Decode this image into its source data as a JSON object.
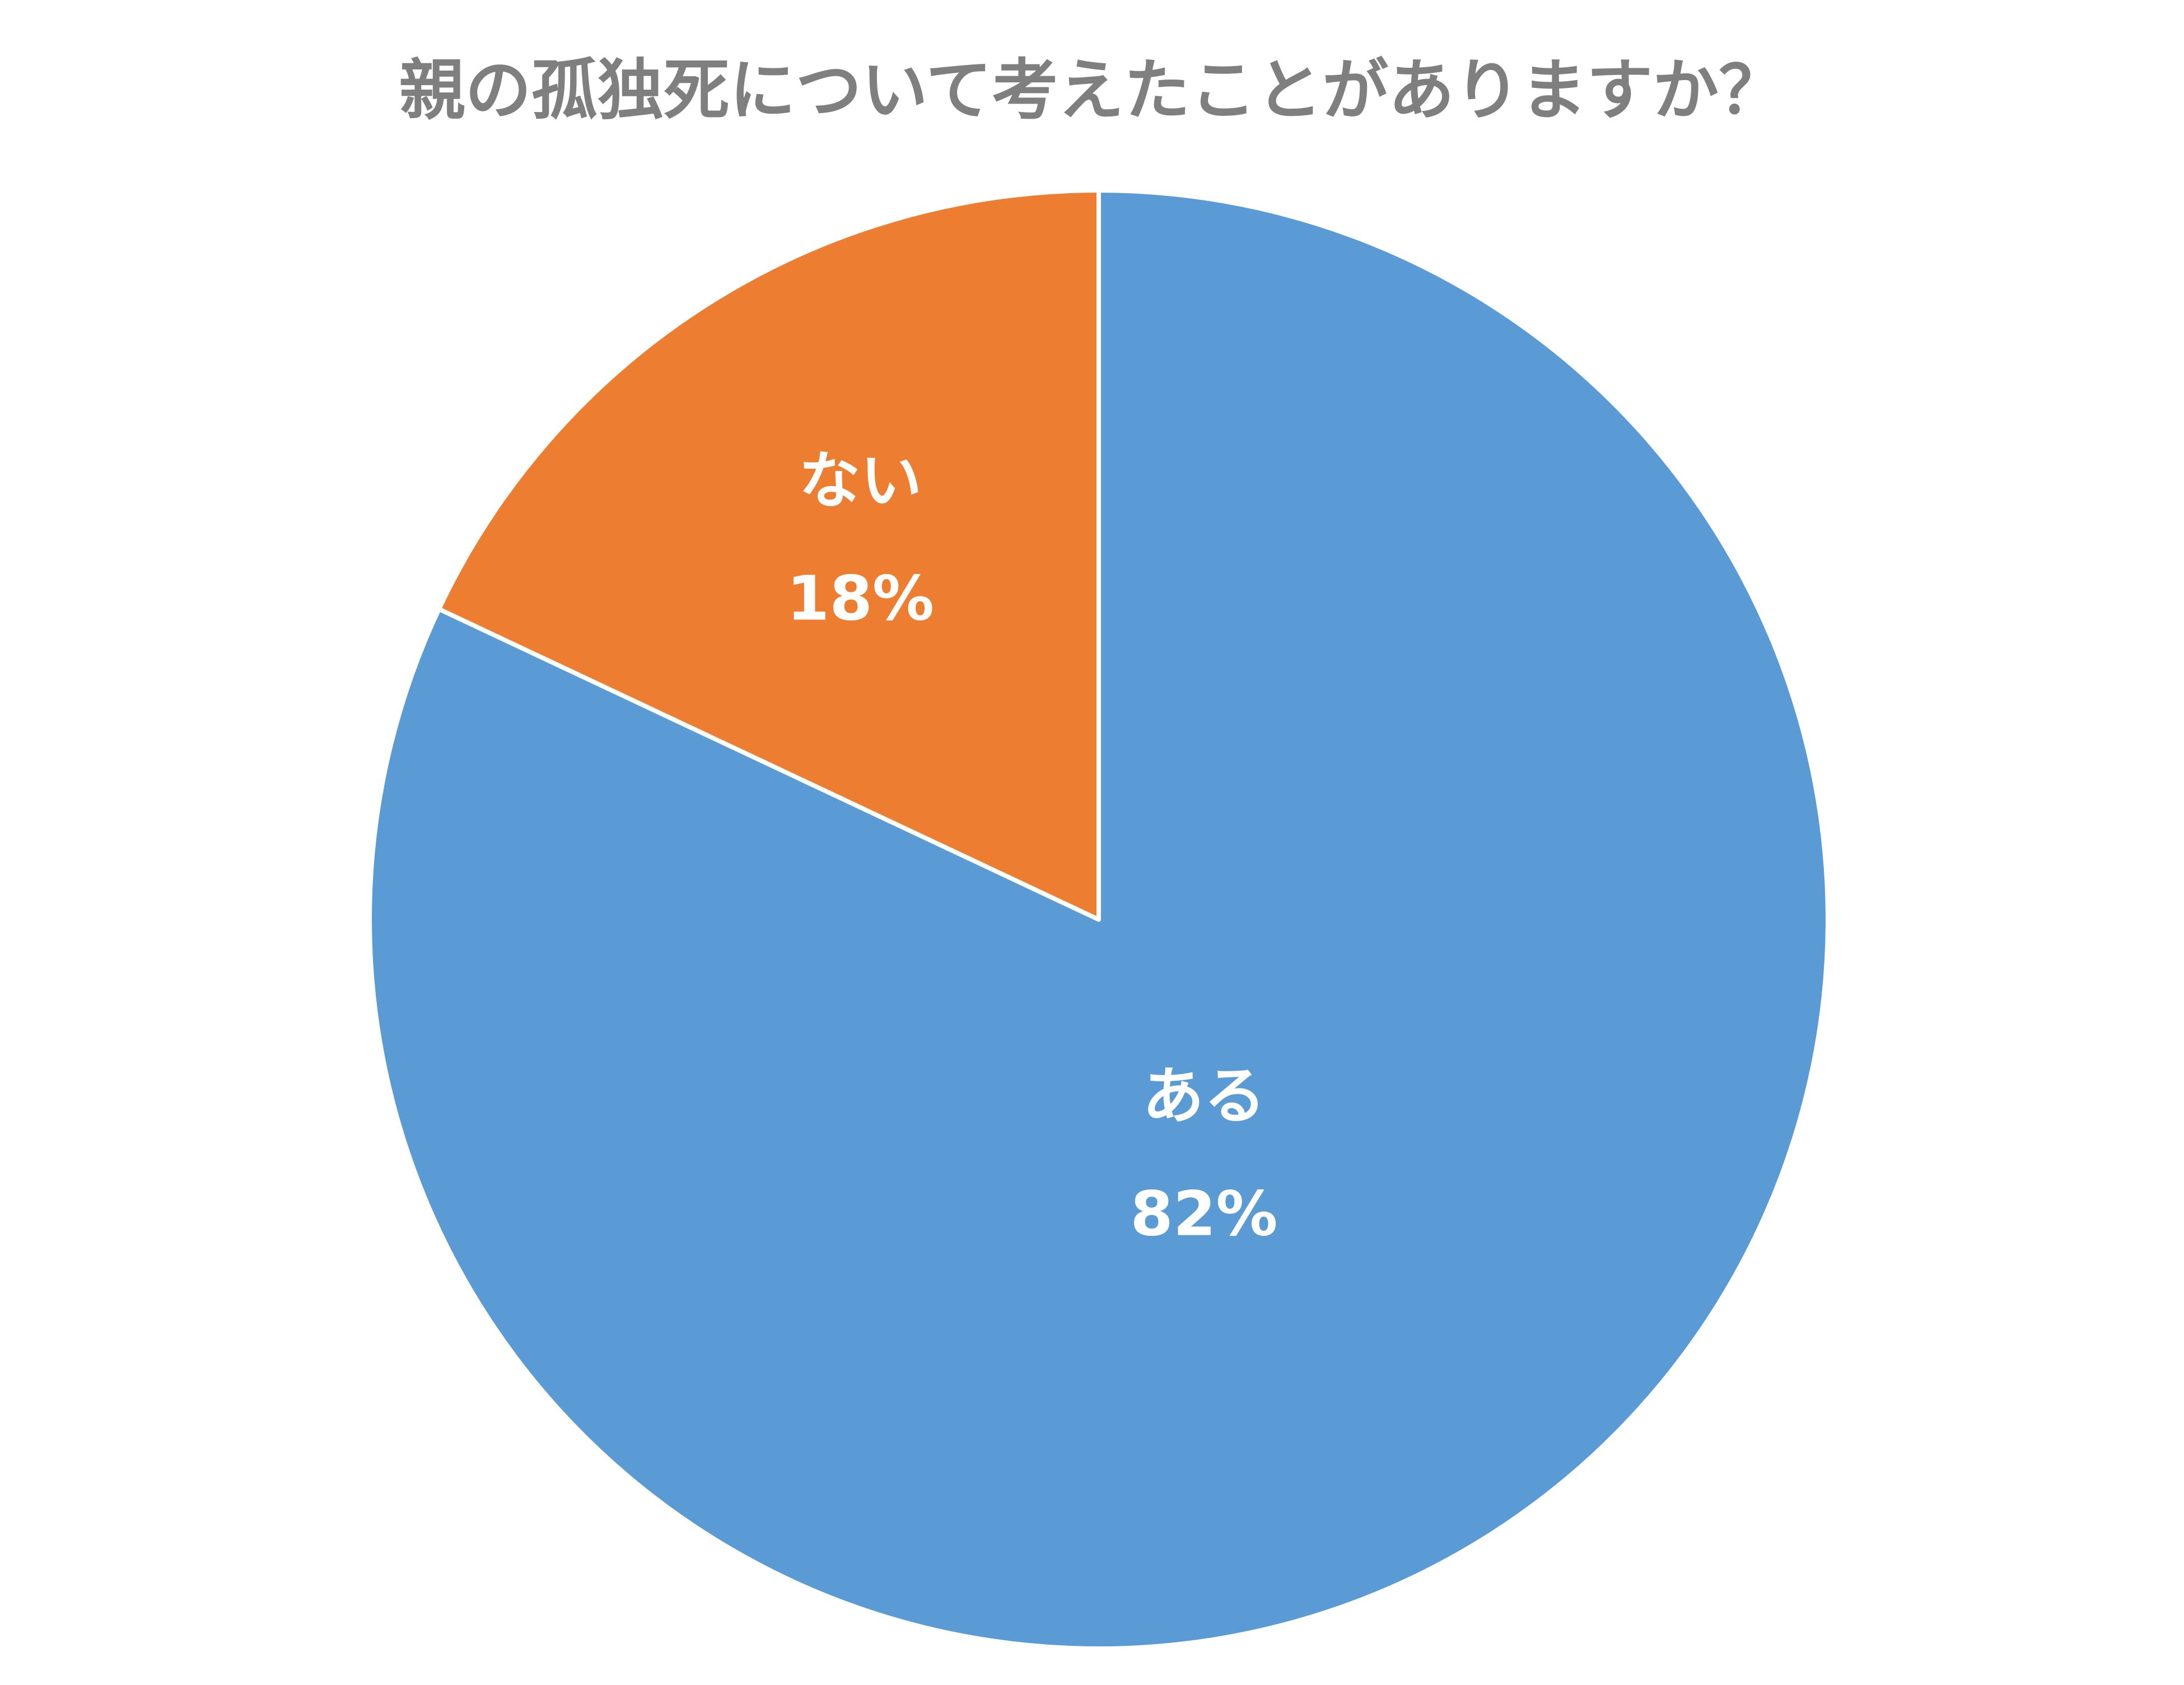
{
  "chart_data": {
    "type": "pie",
    "title": "親の孤独死について考えたことがありますか？",
    "categories": [
      "ある",
      "ない"
    ],
    "values": [
      82,
      18
    ],
    "value_labels": [
      "82%",
      "18%"
    ],
    "colors": [
      "#5b9bd5",
      "#ed7d31"
    ]
  }
}
